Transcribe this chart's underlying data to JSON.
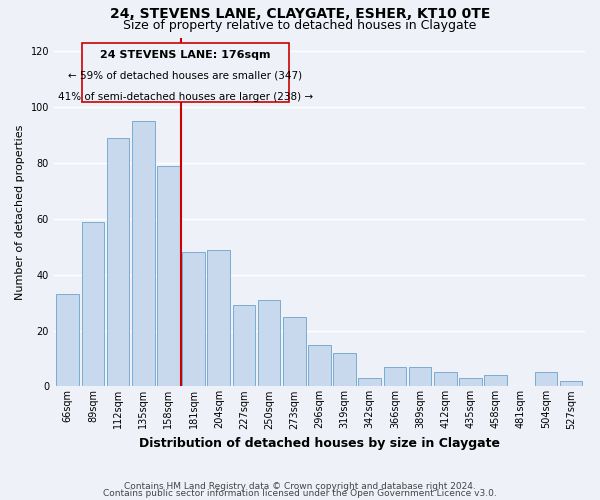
{
  "title": "24, STEVENS LANE, CLAYGATE, ESHER, KT10 0TE",
  "subtitle": "Size of property relative to detached houses in Claygate",
  "xlabel": "Distribution of detached houses by size in Claygate",
  "ylabel": "Number of detached properties",
  "bar_color": "#c8d8ed",
  "bar_edge_color": "#7aadd4",
  "categories": [
    "66sqm",
    "89sqm",
    "112sqm",
    "135sqm",
    "158sqm",
    "181sqm",
    "204sqm",
    "227sqm",
    "250sqm",
    "273sqm",
    "296sqm",
    "319sqm",
    "342sqm",
    "366sqm",
    "389sqm",
    "412sqm",
    "435sqm",
    "458sqm",
    "481sqm",
    "504sqm",
    "527sqm"
  ],
  "values": [
    33,
    59,
    89,
    95,
    79,
    48,
    49,
    29,
    31,
    25,
    15,
    12,
    3,
    7,
    7,
    5,
    3,
    4,
    0,
    5,
    2
  ],
  "ylim": [
    0,
    125
  ],
  "yticks": [
    0,
    20,
    40,
    60,
    80,
    100,
    120
  ],
  "property_line_label": "24 STEVENS LANE: 176sqm",
  "annotation_line1": "← 59% of detached houses are smaller (347)",
  "annotation_line2": "41% of semi-detached houses are larger (238) →",
  "vline_color": "#cc0000",
  "box_color": "#cc0000",
  "footer_line1": "Contains HM Land Registry data © Crown copyright and database right 2024.",
  "footer_line2": "Contains public sector information licensed under the Open Government Licence v3.0.",
  "background_color": "#eef2f8",
  "grid_color": "#ffffff",
  "title_fontsize": 10,
  "subtitle_fontsize": 9,
  "xlabel_fontsize": 9,
  "ylabel_fontsize": 8,
  "tick_fontsize": 7,
  "footer_fontsize": 6.5,
  "annotation_fontsize": 8
}
